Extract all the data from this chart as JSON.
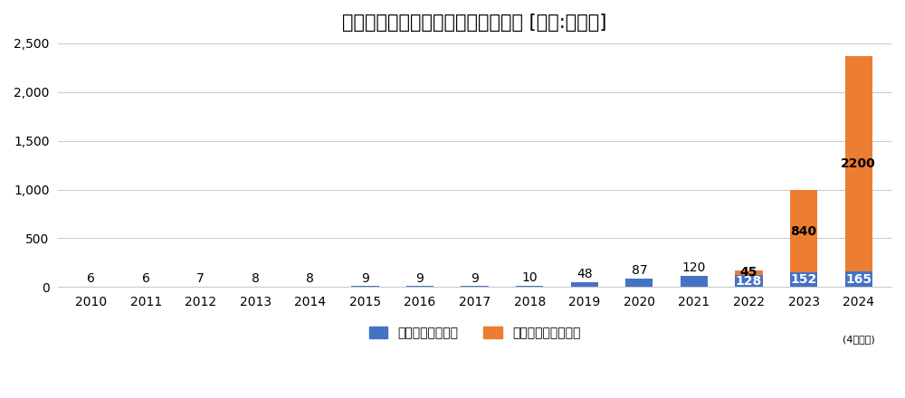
{
  "title": "カウネットの総取り扱い品番数推移 [単位:万品番]",
  "years": [
    2010,
    2011,
    2012,
    2013,
    2014,
    2015,
    2016,
    2017,
    2018,
    2019,
    2020,
    2021,
    2022,
    2023,
    2024
  ],
  "blue_values": [
    6,
    6,
    7,
    8,
    8,
    9,
    9,
    9,
    10,
    48,
    87,
    120,
    128,
    152,
    165
  ],
  "orange_values": [
    0,
    0,
    0,
    0,
    0,
    0,
    0,
    0,
    0,
    0,
    0,
    0,
    45,
    840,
    2200
  ],
  "blue_color": "#4472C4",
  "orange_color": "#ED7D31",
  "background_color": "#FFFFFF",
  "ylim": [
    0,
    2500
  ],
  "yticks": [
    0,
    500,
    1000,
    1500,
    2000,
    2500
  ],
  "legend_blue": "自社取り扱い品番",
  "legend_orange": "他社サイト連携品番",
  "note": "(4月現在)",
  "title_fontsize": 15,
  "label_fontsize": 10,
  "tick_fontsize": 10
}
